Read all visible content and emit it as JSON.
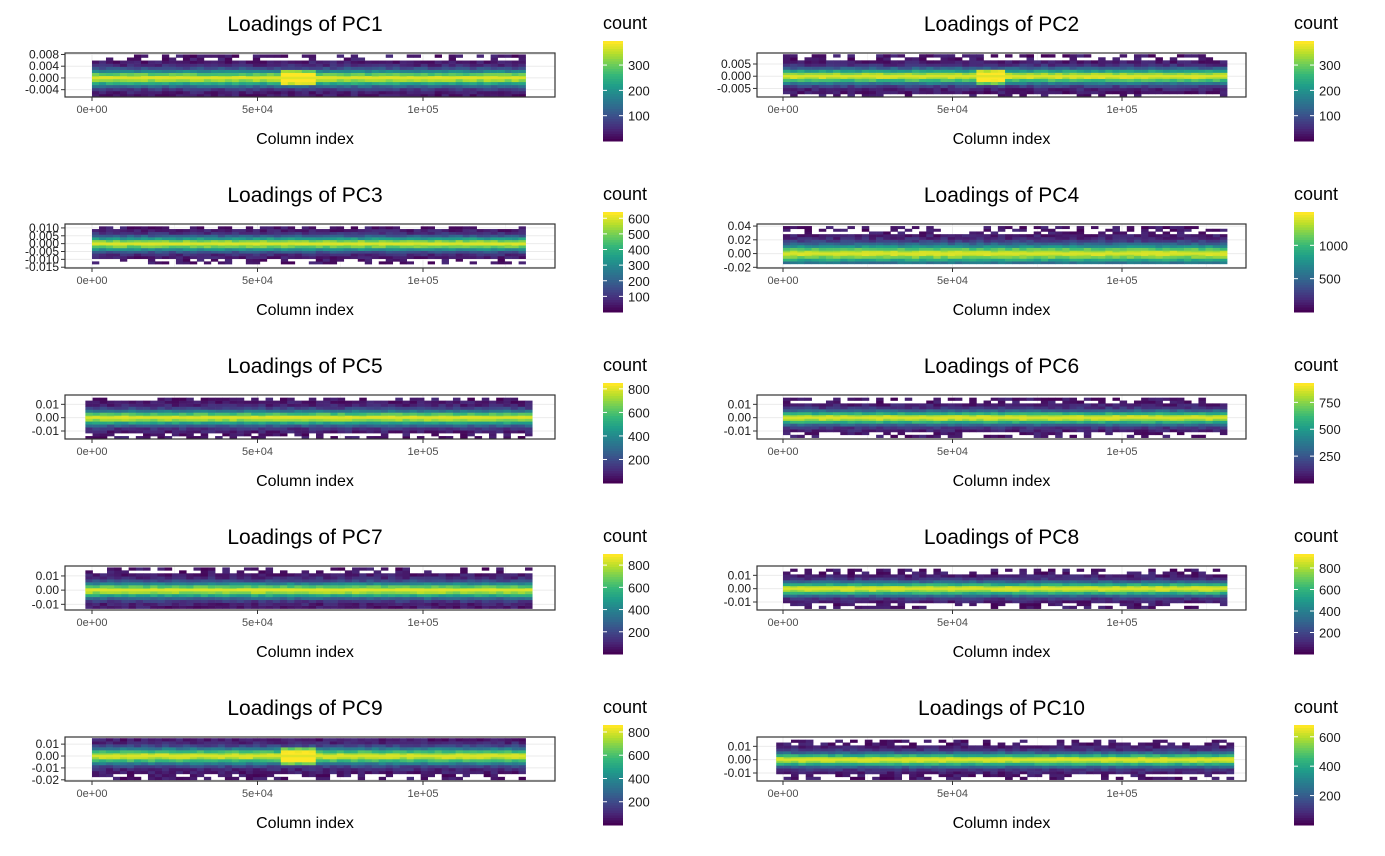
{
  "chart_data": [
    {
      "type": "heatmap",
      "title": "Loadings of PC1",
      "xlabel": "Column index",
      "ylabel": "",
      "xlim": [
        -5000,
        138000
      ],
      "ylim": [
        -0.0065,
        0.0085
      ],
      "x_ticks": [
        "0e+00",
        "5e+04",
        "1e+05"
      ],
      "x_tick_values": [
        0,
        50000,
        100000
      ],
      "y_ticks": [
        "0.008",
        "0.004",
        "0.000",
        "-0.004"
      ],
      "y_tick_values": [
        0.008,
        0.004,
        0.0,
        -0.004
      ],
      "data_x_range": [
        0,
        131000
      ],
      "data_y_range": [
        -0.0065,
        0.008
      ],
      "band_center": 0.0,
      "hotspot_x": 61000,
      "legend": {
        "title": "count",
        "ticks": [
          "300",
          "200",
          "100"
        ],
        "tick_values": [
          300,
          200,
          100
        ],
        "min": 0,
        "max": 395
      }
    },
    {
      "type": "heatmap",
      "title": "Loadings of PC2",
      "xlabel": "Column index",
      "ylabel": "",
      "xlim": [
        -5000,
        138000
      ],
      "ylim": [
        -0.0085,
        0.0095
      ],
      "x_ticks": [
        "0e+00",
        "5e+04",
        "1e+05"
      ],
      "x_tick_values": [
        0,
        50000,
        100000
      ],
      "y_ticks": [
        "0.005",
        "0.000",
        "-0.005"
      ],
      "y_tick_values": [
        0.005,
        0.0,
        -0.005
      ],
      "data_x_range": [
        0,
        131000
      ],
      "data_y_range": [
        -0.0085,
        0.009
      ],
      "band_center": 0.0,
      "hotspot_x": 60000,
      "legend": {
        "title": "count",
        "ticks": [
          "300",
          "200",
          "100"
        ],
        "tick_values": [
          300,
          200,
          100
        ],
        "min": 0,
        "max": 395
      }
    },
    {
      "type": "heatmap",
      "title": "Loadings of PC3",
      "xlabel": "Column index",
      "ylabel": "",
      "xlim": [
        -5000,
        138000
      ],
      "ylim": [
        -0.0155,
        0.0125
      ],
      "x_ticks": [
        "0e+00",
        "5e+04",
        "1e+05"
      ],
      "x_tick_values": [
        0,
        50000,
        100000
      ],
      "y_ticks": [
        "0.010",
        "0.005",
        "0.000",
        "-0.005",
        "-0.010",
        "-0.015"
      ],
      "y_tick_values": [
        0.01,
        0.005,
        0.0,
        -0.005,
        -0.01,
        -0.015
      ],
      "data_x_range": [
        0,
        131000
      ],
      "data_y_range": [
        -0.013,
        0.011
      ],
      "band_center": 0.0,
      "hotspot_x": null,
      "legend": {
        "title": "count",
        "ticks": [
          "600",
          "500",
          "400",
          "300",
          "200",
          "100"
        ],
        "tick_values": [
          600,
          500,
          400,
          300,
          200,
          100
        ],
        "min": 0,
        "max": 640
      }
    },
    {
      "type": "heatmap",
      "title": "Loadings of PC4",
      "xlabel": "Column index",
      "ylabel": "",
      "xlim": [
        -5000,
        138000
      ],
      "ylim": [
        -0.021,
        0.043
      ],
      "x_ticks": [
        "0e+00",
        "5e+04",
        "1e+05"
      ],
      "x_tick_values": [
        0,
        50000,
        100000
      ],
      "y_ticks": [
        "0.04",
        "0.02",
        "0.00",
        "-0.02"
      ],
      "y_tick_values": [
        0.04,
        0.02,
        0.0,
        -0.02
      ],
      "data_x_range": [
        0,
        131000
      ],
      "data_y_range": [
        -0.015,
        0.04
      ],
      "band_center": 0.0,
      "hotspot_x": null,
      "legend": {
        "title": "count",
        "ticks": [
          "1000",
          "500"
        ],
        "tick_values": [
          1000,
          500
        ],
        "min": 0,
        "max": 1500
      }
    },
    {
      "type": "heatmap",
      "title": "Loadings of PC5",
      "xlabel": "Column index",
      "ylabel": "",
      "xlim": [
        -5000,
        138000
      ],
      "ylim": [
        -0.016,
        0.017
      ],
      "x_ticks": [
        "0e+00",
        "5e+04",
        "1e+05"
      ],
      "x_tick_values": [
        0,
        50000,
        100000
      ],
      "y_ticks": [
        "0.01",
        "0.00",
        "-0.01"
      ],
      "y_tick_values": [
        0.01,
        0.0,
        -0.01
      ],
      "data_x_range": [
        -2000,
        133000
      ],
      "data_y_range": [
        -0.016,
        0.015
      ],
      "band_center": 0.0,
      "hotspot_x": null,
      "legend": {
        "title": "count",
        "ticks": [
          "800",
          "600",
          "400",
          "200"
        ],
        "tick_values": [
          800,
          600,
          400,
          200
        ],
        "min": 0,
        "max": 850
      }
    },
    {
      "type": "heatmap",
      "title": "Loadings of PC6",
      "xlabel": "Column index",
      "ylabel": "",
      "xlim": [
        -5000,
        138000
      ],
      "ylim": [
        -0.016,
        0.017
      ],
      "x_ticks": [
        "0e+00",
        "5e+04",
        "1e+05"
      ],
      "x_tick_values": [
        0,
        50000,
        100000
      ],
      "y_ticks": [
        "0.01",
        "0.00",
        "-0.01"
      ],
      "y_tick_values": [
        0.01,
        0.0,
        -0.01
      ],
      "data_x_range": [
        0,
        131000
      ],
      "data_y_range": [
        -0.015,
        0.015
      ],
      "band_center": 0.0,
      "hotspot_x": null,
      "legend": {
        "title": "count",
        "ticks": [
          "750",
          "500",
          "250"
        ],
        "tick_values": [
          750,
          500,
          250
        ],
        "min": 0,
        "max": 930
      }
    },
    {
      "type": "heatmap",
      "title": "Loadings of PC7",
      "xlabel": "Column index",
      "ylabel": "",
      "xlim": [
        -5000,
        138000
      ],
      "ylim": [
        -0.014,
        0.017
      ],
      "x_ticks": [
        "0e+00",
        "5e+04",
        "1e+05"
      ],
      "x_tick_values": [
        0,
        50000,
        100000
      ],
      "y_ticks": [
        "0.01",
        "0.00",
        "-0.01"
      ],
      "y_tick_values": [
        0.01,
        0.0,
        -0.01
      ],
      "data_x_range": [
        -2000,
        133000
      ],
      "data_y_range": [
        -0.013,
        0.016
      ],
      "band_center": 0.0,
      "hotspot_x": null,
      "legend": {
        "title": "count",
        "ticks": [
          "800",
          "600",
          "400",
          "200"
        ],
        "tick_values": [
          800,
          600,
          400,
          200
        ],
        "min": 0,
        "max": 900
      }
    },
    {
      "type": "heatmap",
      "title": "Loadings of PC8",
      "xlabel": "Column index",
      "ylabel": "",
      "xlim": [
        -5000,
        138000
      ],
      "ylim": [
        -0.016,
        0.017
      ],
      "x_ticks": [
        "0e+00",
        "5e+04",
        "1e+05"
      ],
      "x_tick_values": [
        0,
        50000,
        100000
      ],
      "y_ticks": [
        "0.01",
        "0.00",
        "-0.01"
      ],
      "y_tick_values": [
        0.01,
        0.0,
        -0.01
      ],
      "data_x_range": [
        0,
        131000
      ],
      "data_y_range": [
        -0.015,
        0.015
      ],
      "band_center": 0.0,
      "hotspot_x": null,
      "legend": {
        "title": "count",
        "ticks": [
          "800",
          "600",
          "400",
          "200"
        ],
        "tick_values": [
          800,
          600,
          400,
          200
        ],
        "min": 0,
        "max": 930
      }
    },
    {
      "type": "heatmap",
      "title": "Loadings of PC9",
      "xlabel": "Column index",
      "ylabel": "",
      "xlim": [
        -5000,
        138000
      ],
      "ylim": [
        -0.021,
        0.016
      ],
      "x_ticks": [
        "0e+00",
        "5e+04",
        "1e+05"
      ],
      "x_tick_values": [
        0,
        50000,
        100000
      ],
      "y_ticks": [
        "0.01",
        "0.00",
        "-0.01",
        "-0.02"
      ],
      "y_tick_values": [
        0.01,
        0.0,
        -0.01,
        -0.02
      ],
      "data_x_range": [
        0,
        131000
      ],
      "data_y_range": [
        -0.02,
        0.015
      ],
      "band_center": 0.0,
      "hotspot_x": 62000,
      "legend": {
        "title": "count",
        "ticks": [
          "800",
          "600",
          "400",
          "200"
        ],
        "tick_values": [
          800,
          600,
          400,
          200
        ],
        "min": 0,
        "max": 860
      }
    },
    {
      "type": "heatmap",
      "title": "Loadings of PC10",
      "xlabel": "Column index",
      "ylabel": "",
      "xlim": [
        -5000,
        138000
      ],
      "ylim": [
        -0.016,
        0.017
      ],
      "x_ticks": [
        "0e+00",
        "5e+04",
        "1e+05"
      ],
      "x_tick_values": [
        0,
        50000,
        100000
      ],
      "y_ticks": [
        "0.01",
        "0.00",
        "-0.01"
      ],
      "y_tick_values": [
        0.01,
        0.0,
        -0.01
      ],
      "data_x_range": [
        -2000,
        133000
      ],
      "data_y_range": [
        -0.015,
        0.015
      ],
      "band_center": 0.0,
      "hotspot_x": null,
      "legend": {
        "title": "count",
        "ticks": [
          "600",
          "400",
          "200"
        ],
        "tick_values": [
          600,
          400,
          200
        ],
        "min": 0,
        "max": 680
      }
    }
  ],
  "colors": {
    "viridis": [
      "#440154",
      "#482878",
      "#3e4989",
      "#31688e",
      "#26828e",
      "#1f9e89",
      "#35b779",
      "#6ece58",
      "#b5de2b",
      "#fde725"
    ],
    "grid": "#ebebeb",
    "panel_border": "#333333"
  }
}
